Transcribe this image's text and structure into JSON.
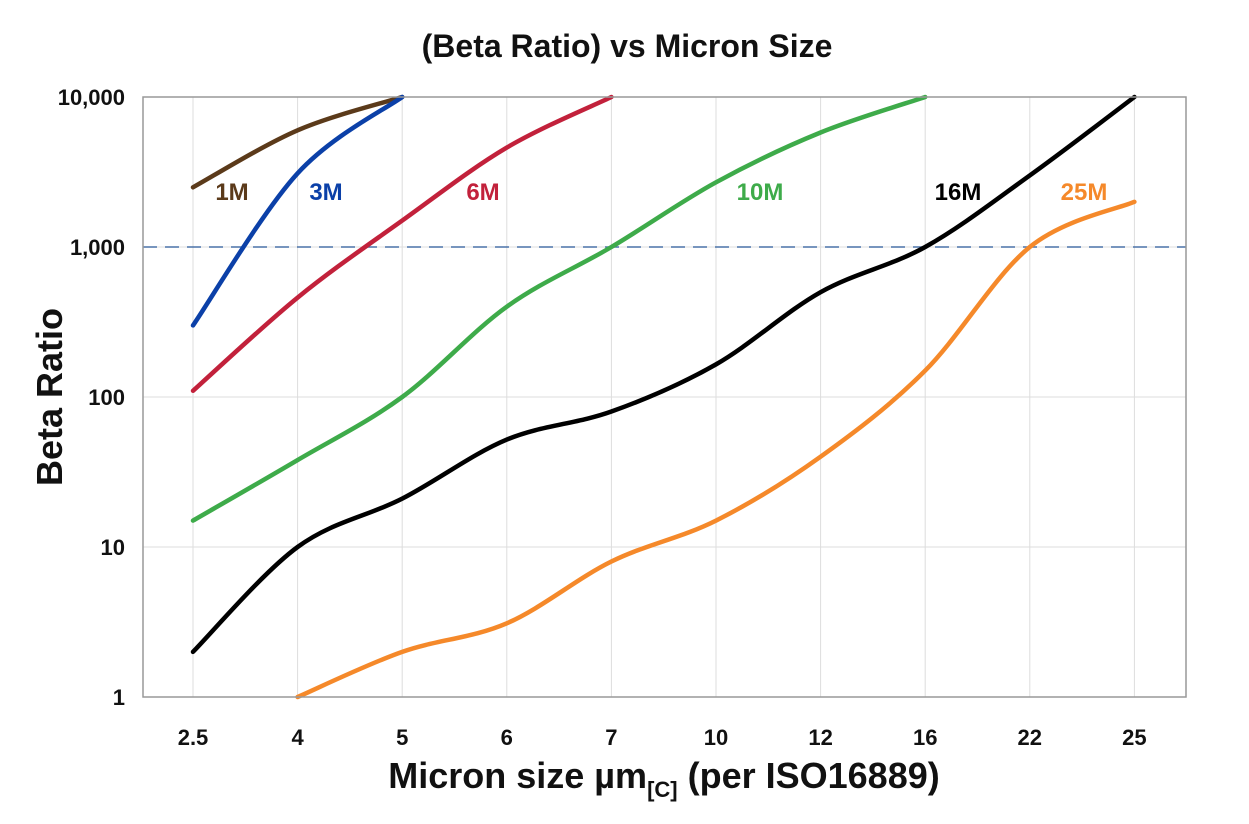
{
  "chart_data": {
    "type": "line",
    "title": "(Beta Ratio) vs Micron Size",
    "ylabel": "Beta Ratio",
    "xlabel": {
      "main": "Micron size µm",
      "subscript": "[C]",
      "suffix": " (per ISO16889)"
    },
    "y_scale": "log",
    "ylim": [
      1,
      10000
    ],
    "y_ticks": [
      1,
      10,
      100,
      1000,
      10000
    ],
    "y_tick_labels": [
      "1",
      "10",
      "100",
      "1,000",
      "10,000"
    ],
    "categories": [
      "2.5",
      "4",
      "5",
      "6",
      "7",
      "10",
      "12",
      "16",
      "22",
      "25"
    ],
    "grid": true,
    "reference_line": {
      "value": 1000,
      "style": "dashed",
      "color": "#4a72a8"
    },
    "series": [
      {
        "name": "1M",
        "color": "#5b3a1a",
        "values": [
          2500,
          6000,
          10000,
          null,
          null,
          null,
          null,
          null,
          null,
          null
        ]
      },
      {
        "name": "3M",
        "color": "#0b40a8",
        "values": [
          300,
          3100,
          10000,
          null,
          null,
          null,
          null,
          null,
          null,
          null
        ]
      },
      {
        "name": "6M",
        "color": "#c2213b",
        "values": [
          110,
          460,
          1500,
          4600,
          10000,
          null,
          null,
          null,
          null,
          null
        ]
      },
      {
        "name": "10M",
        "color": "#3eab4a",
        "values": [
          15,
          38,
          100,
          400,
          1000,
          2700,
          5800,
          10000,
          null,
          null
        ]
      },
      {
        "name": "16M",
        "color": "#000000",
        "values": [
          2,
          10,
          21,
          52,
          80,
          165,
          500,
          1000,
          3000,
          10000
        ]
      },
      {
        "name": "25M",
        "color": "#f5892a",
        "values": [
          null,
          1,
          2,
          3.1,
          8,
          15,
          40,
          150,
          1000,
          2000
        ]
      }
    ]
  }
}
